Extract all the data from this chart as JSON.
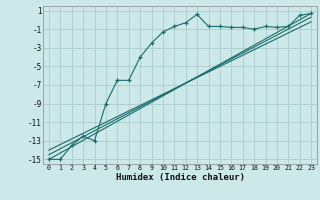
{
  "xlabel": "Humidex (Indice chaleur)",
  "background_color": "#cce8e8",
  "grid_color": "#aacccc",
  "line_color": "#1a6b6b",
  "xlim": [
    -0.5,
    23.5
  ],
  "ylim": [
    -15.5,
    1.5
  ],
  "yticks": [
    1,
    -1,
    -3,
    -5,
    -7,
    -9,
    -11,
    -13,
    -15
  ],
  "xticks": [
    0,
    1,
    2,
    3,
    4,
    5,
    6,
    7,
    8,
    9,
    10,
    11,
    12,
    13,
    14,
    15,
    16,
    17,
    18,
    19,
    20,
    21,
    22,
    23
  ],
  "line1_x": [
    0,
    1,
    2,
    3,
    4,
    5,
    6,
    7,
    8,
    9,
    10,
    11,
    12,
    13,
    14,
    15,
    16,
    17,
    18,
    19,
    20,
    21,
    22,
    23
  ],
  "line1_y": [
    -15,
    -15,
    -13.5,
    -12.5,
    -13,
    -9,
    -6.5,
    -6.5,
    -4,
    -2.5,
    -1.3,
    -0.7,
    -0.3,
    0.6,
    -0.7,
    -0.7,
    -0.8,
    -0.8,
    -1.0,
    -0.7,
    -0.8,
    -0.7,
    0.5,
    0.7
  ],
  "line2_x": [
    0,
    23
  ],
  "line2_y": [
    -15,
    0.7
  ],
  "line3_x": [
    0,
    23
  ],
  "line3_y": [
    -14.5,
    0.3
  ],
  "line4_x": [
    0,
    23
  ],
  "line4_y": [
    -14.0,
    -0.2
  ]
}
